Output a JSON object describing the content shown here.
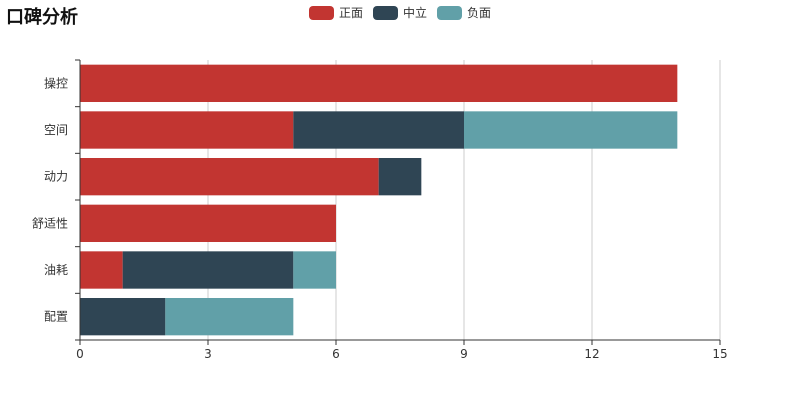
{
  "title": "口碑分析",
  "chart_data": {
    "type": "bar",
    "orientation": "horizontal",
    "stacked": true,
    "title": "口碑分析",
    "categories": [
      "操控",
      "空间",
      "动力",
      "舒适性",
      "油耗",
      "配置"
    ],
    "series": [
      {
        "name": "正面",
        "color": "#c23531",
        "values": [
          14,
          5,
          7,
          6,
          1,
          0
        ]
      },
      {
        "name": "中立",
        "color": "#2f4554",
        "values": [
          0,
          4,
          1,
          0,
          4,
          2
        ]
      },
      {
        "name": "负面",
        "color": "#61a0a8",
        "values": [
          0,
          5,
          0,
          0,
          1,
          3
        ]
      }
    ],
    "xlim": [
      0,
      15
    ],
    "xticks": [
      "0",
      "3",
      "6",
      "9",
      "12",
      "15"
    ],
    "grid": true,
    "legend_position": "top-center",
    "xlabel": "",
    "ylabel": ""
  }
}
